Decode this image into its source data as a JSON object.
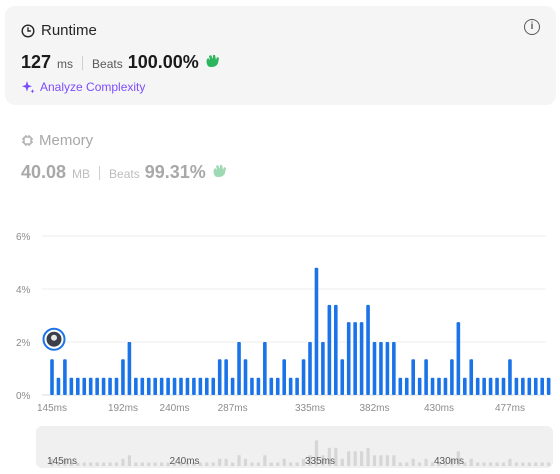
{
  "runtime": {
    "title": "Runtime",
    "value": "127",
    "unit": "ms",
    "beats_label": "Beats",
    "beats_value": "100.00%",
    "analyze_label": "Analyze Complexity"
  },
  "memory": {
    "title": "Memory",
    "value": "40.08",
    "unit": "MB",
    "beats_label": "Beats",
    "beats_value": "99.31%"
  },
  "colors": {
    "bar": "#1a73e8",
    "mini_bar": "#d6d6d6",
    "accent": "#7c4dff",
    "wave_green": "#2db55d"
  },
  "chart_data": {
    "type": "bar",
    "y_ticks": [
      "0%",
      "2%",
      "4%",
      "6%"
    ],
    "ylim": [
      0,
      6
    ],
    "x_tick_labels": [
      "145ms",
      "192ms",
      "240ms",
      "287ms",
      "335ms",
      "382ms",
      "430ms",
      "477ms"
    ],
    "x_tick_bar_index": [
      0,
      11,
      19,
      28,
      40,
      50,
      60,
      71
    ],
    "values": [
      1.35,
      0.65,
      1.35,
      0.65,
      0.65,
      0.65,
      0.65,
      0.65,
      0.65,
      0.65,
      0.65,
      1.35,
      2.0,
      0.65,
      0.65,
      0.65,
      0.65,
      0.65,
      0.65,
      0.65,
      0.65,
      0.65,
      0.65,
      0.65,
      0.65,
      0.65,
      1.35,
      1.35,
      0.65,
      2.0,
      1.35,
      0.65,
      0.65,
      2.0,
      0.65,
      0.65,
      1.35,
      0.65,
      0.65,
      1.35,
      2.0,
      4.8,
      2.0,
      3.4,
      3.4,
      1.35,
      2.75,
      2.75,
      2.75,
      3.4,
      2.0,
      2.0,
      2.0,
      2.0,
      0.65,
      0.65,
      1.35,
      0.65,
      1.35,
      0.65,
      0.65,
      0.65,
      1.35,
      2.75,
      0.65,
      1.35,
      0.65,
      0.65,
      0.65,
      0.65,
      0.65,
      1.35,
      0.65,
      0.65,
      0.65,
      0.65,
      0.65,
      0.65
    ],
    "mini_x_labels": [
      "145ms",
      "240ms",
      "335ms",
      "430ms"
    ],
    "mini_x_bar_index": [
      0,
      19,
      40,
      60
    ]
  }
}
